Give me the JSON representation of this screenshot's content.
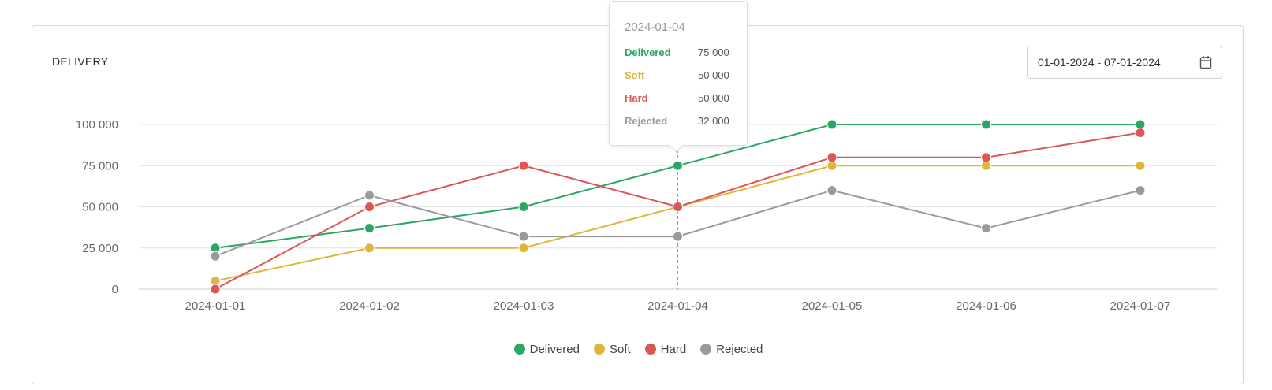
{
  "card": {
    "title": "DELIVERY",
    "date_range": "01-01-2024 - 07-01-2024"
  },
  "tooltip": {
    "date": "2024-01-04",
    "rows": [
      {
        "name": "Delivered",
        "value": "75 000",
        "color": "#2aa765"
      },
      {
        "name": "Soft",
        "value": "50 000",
        "color": "#e1b53c"
      },
      {
        "name": "Hard",
        "value": "50 000",
        "color": "#dc5656"
      },
      {
        "name": "Rejected",
        "value": "32 000",
        "color": "#9a9a9a"
      }
    ]
  },
  "icons": {
    "date_picker": "calendar-icon"
  },
  "chart_data": {
    "type": "line",
    "title": "DELIVERY",
    "x": [
      "2024-01-01",
      "2024-01-02",
      "2024-01-03",
      "2024-01-04",
      "2024-01-05",
      "2024-01-06",
      "2024-01-07"
    ],
    "ylim": [
      0,
      100000
    ],
    "yticks": [
      0,
      25000,
      50000,
      75000,
      100000
    ],
    "ytick_labels": [
      "0",
      "25 000",
      "50 000",
      "75 000",
      "100 000"
    ],
    "grid": true,
    "legend_position": "bottom-center",
    "hover_index": 3,
    "series": [
      {
        "name": "Delivered",
        "color": "#2aa765",
        "values": [
          25000,
          37000,
          50000,
          75000,
          100000,
          100000,
          100000
        ]
      },
      {
        "name": "Soft",
        "color": "#e1b53c",
        "values": [
          5000,
          25000,
          25000,
          50000,
          75000,
          75000,
          75000
        ]
      },
      {
        "name": "Hard",
        "color": "#dc5656",
        "values": [
          0,
          50000,
          75000,
          50000,
          80000,
          80000,
          95000
        ]
      },
      {
        "name": "Rejected",
        "color": "#9a9a9a",
        "values": [
          20000,
          57000,
          32000,
          32000,
          60000,
          37000,
          60000
        ]
      }
    ]
  }
}
